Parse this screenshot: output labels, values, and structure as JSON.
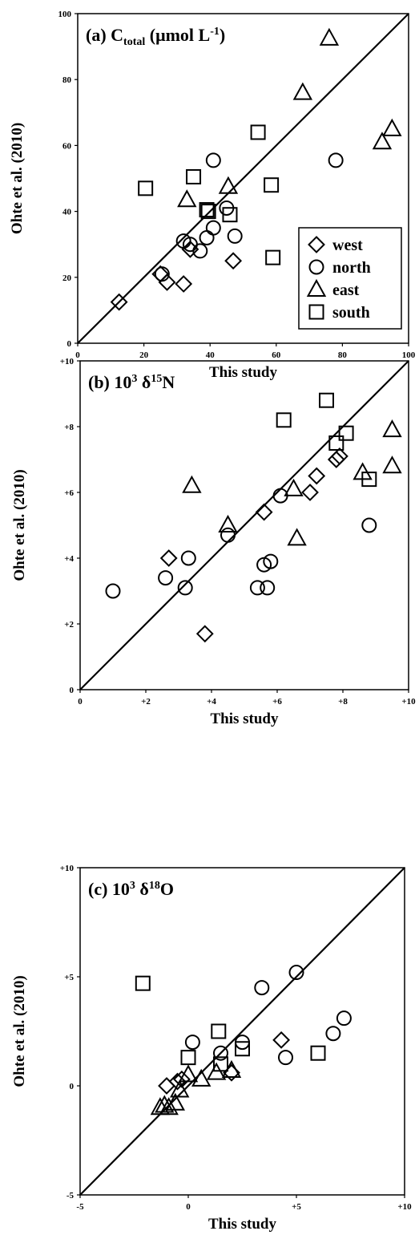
{
  "chart_data": [
    {
      "type": "scatter",
      "title_parts": {
        "prefix": "(a) C",
        "sub": "total",
        "mid": " (μmol L",
        "sup": "-1",
        "suffix": ")"
      },
      "xlabel": "This study",
      "ylabel": "Ohte et al. (2010)",
      "xlim": [
        0,
        100
      ],
      "ylim": [
        0,
        100
      ],
      "xticks": [
        0,
        20,
        40,
        60,
        80,
        100
      ],
      "xtick_labels": [
        "0",
        "20",
        "40",
        "60",
        "80",
        "100"
      ],
      "yticks": [
        0,
        20,
        40,
        60,
        80,
        100
      ],
      "ytick_labels": [
        "0",
        "20",
        "40",
        "60",
        "80",
        "100"
      ],
      "one_to_one_line": true,
      "legend": {
        "placement": "bottom-right",
        "entries": [
          "west",
          "north",
          "east",
          "south"
        ]
      },
      "series": [
        {
          "name": "west",
          "marker": "diamond",
          "points": [
            [
              12.5,
              12.5
            ],
            [
              25,
              21
            ],
            [
              27,
              18.5
            ],
            [
              32,
              18
            ],
            [
              34,
              28.5
            ],
            [
              47,
              25
            ]
          ]
        },
        {
          "name": "north",
          "marker": "circle",
          "points": [
            [
              25.5,
              21
            ],
            [
              32,
              31
            ],
            [
              34,
              30
            ],
            [
              37,
              28
            ],
            [
              39,
              32
            ],
            [
              41,
              35
            ],
            [
              41,
              55.5
            ],
            [
              45,
              41
            ],
            [
              47.5,
              32.5
            ],
            [
              78,
              55.5
            ]
          ]
        },
        {
          "name": "east",
          "marker": "triangle",
          "points": [
            [
              33,
              43.5
            ],
            [
              45.5,
              47.5
            ],
            [
              68,
              76
            ],
            [
              76,
              92.5
            ],
            [
              92,
              61
            ],
            [
              95,
              65
            ]
          ]
        },
        {
          "name": "south",
          "marker": "square",
          "points": [
            [
              20.5,
              47
            ],
            [
              35,
              50.5
            ],
            [
              39,
              40.5
            ],
            [
              39.5,
              40
            ],
            [
              46,
              39
            ],
            [
              54.5,
              64
            ],
            [
              58.5,
              48
            ],
            [
              59,
              26
            ]
          ]
        }
      ]
    },
    {
      "type": "scatter",
      "title_parts": {
        "prefix": "(b) 10",
        "sup1": "3",
        "mid": " δ",
        "sup2": "15",
        "suffix": "N"
      },
      "xlabel": "This study",
      "ylabel": "Ohte et al. (2010)",
      "xlim": [
        0,
        10
      ],
      "ylim": [
        0,
        10
      ],
      "xticks": [
        0,
        2,
        4,
        6,
        8,
        10
      ],
      "xtick_labels": [
        "0",
        "+2",
        "+4",
        "+6",
        "+8",
        "+10"
      ],
      "yticks": [
        0,
        2,
        4,
        6,
        8,
        10
      ],
      "ytick_labels": [
        "0",
        "+2",
        "+4",
        "+6",
        "+8",
        "+10"
      ],
      "one_to_one_line": true,
      "series": [
        {
          "name": "west",
          "marker": "diamond",
          "points": [
            [
              2.7,
              4.0
            ],
            [
              3.8,
              1.7
            ],
            [
              5.6,
              5.4
            ],
            [
              7.0,
              6.0
            ],
            [
              7.2,
              6.5
            ],
            [
              7.8,
              7.0
            ],
            [
              7.9,
              7.1
            ]
          ]
        },
        {
          "name": "north",
          "marker": "circle",
          "points": [
            [
              1.0,
              3.0
            ],
            [
              2.6,
              3.4
            ],
            [
              3.2,
              3.1
            ],
            [
              3.3,
              4.0
            ],
            [
              4.5,
              4.7
            ],
            [
              5.4,
              3.1
            ],
            [
              5.6,
              3.8
            ],
            [
              5.7,
              3.1
            ],
            [
              5.8,
              3.9
            ],
            [
              6.1,
              5.9
            ],
            [
              8.8,
              5.0
            ]
          ]
        },
        {
          "name": "east",
          "marker": "triangle",
          "points": [
            [
              3.4,
              6.2
            ],
            [
              4.5,
              5.0
            ],
            [
              6.5,
              6.1
            ],
            [
              6.6,
              4.6
            ],
            [
              8.6,
              6.6
            ],
            [
              9.5,
              6.8
            ],
            [
              9.5,
              7.9
            ]
          ]
        },
        {
          "name": "south",
          "marker": "square",
          "points": [
            [
              6.2,
              8.2
            ],
            [
              7.5,
              8.8
            ],
            [
              7.8,
              7.5
            ],
            [
              8.1,
              7.8
            ],
            [
              8.8,
              6.4
            ]
          ]
        }
      ]
    },
    {
      "type": "scatter",
      "title_parts": {
        "prefix": "(c) 10",
        "sup1": "3",
        "mid": " δ",
        "sup2": "18",
        "suffix": "O"
      },
      "xlabel": "This study",
      "ylabel": "Ohte et al. (2010)",
      "xlim": [
        -5,
        10
      ],
      "ylim": [
        -5,
        10
      ],
      "xticks": [
        -5,
        0,
        5,
        10
      ],
      "xtick_labels": [
        "-5",
        "0",
        "+5",
        "+10"
      ],
      "yticks": [
        -5,
        0,
        5,
        10
      ],
      "ytick_labels": [
        "-5",
        "0",
        "+5",
        "+10"
      ],
      "one_to_one_line": true,
      "series": [
        {
          "name": "west",
          "marker": "diamond",
          "points": [
            [
              -1.0,
              0.0
            ],
            [
              -0.5,
              0.2
            ],
            [
              -0.3,
              0.3
            ],
            [
              2.0,
              0.6
            ],
            [
              4.3,
              2.1
            ]
          ]
        },
        {
          "name": "north",
          "marker": "circle",
          "points": [
            [
              0.2,
              2.0
            ],
            [
              1.5,
              1.5
            ],
            [
              2.5,
              2.0
            ],
            [
              3.4,
              4.5
            ],
            [
              4.5,
              1.3
            ],
            [
              5.0,
              5.2
            ],
            [
              6.7,
              2.4
            ],
            [
              7.2,
              3.1
            ]
          ]
        },
        {
          "name": "east",
          "marker": "triangle",
          "points": [
            [
              -1.3,
              -1.0
            ],
            [
              -1.1,
              -0.9
            ],
            [
              -0.9,
              -1.0
            ],
            [
              -0.6,
              -0.8
            ],
            [
              -0.4,
              -0.2
            ],
            [
              0.0,
              0.5
            ],
            [
              0.6,
              0.3
            ],
            [
              1.3,
              0.6
            ],
            [
              2.0,
              0.7
            ]
          ]
        },
        {
          "name": "south",
          "marker": "square",
          "points": [
            [
              -2.1,
              4.7
            ],
            [
              0.0,
              1.3
            ],
            [
              1.4,
              2.5
            ],
            [
              1.5,
              1.0
            ],
            [
              2.5,
              1.7
            ],
            [
              6.0,
              1.5
            ]
          ]
        }
      ]
    }
  ]
}
